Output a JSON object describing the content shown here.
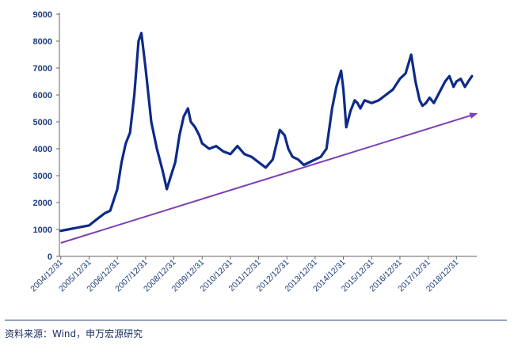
{
  "chart_data": {
    "type": "line",
    "title": "",
    "xlabel": "",
    "ylabel": "",
    "ylim": [
      0,
      9000
    ],
    "y_ticks": [
      0,
      1000,
      2000,
      3000,
      4000,
      5000,
      6000,
      7000,
      8000,
      9000
    ],
    "x_ticks": [
      "2004/12/31",
      "2005/12/31",
      "2006/12/31",
      "2007/12/31",
      "2008/12/31",
      "2009/12/31",
      "2010/12/31",
      "2011/12/31",
      "2012/12/31",
      "2013/12/31",
      "2014/12/31",
      "2015/12/31",
      "2016/12/31",
      "2017/12/31",
      "2018/12/31"
    ],
    "grid": false,
    "legend": "none",
    "series": [
      {
        "color": "#0d2a8a",
        "x": [
          2005.0,
          2005.25,
          2005.5,
          2005.75,
          2006.0,
          2006.3,
          2006.55,
          2006.75,
          2007.0,
          2007.15,
          2007.3,
          2007.45,
          2007.6,
          2007.75,
          2007.85,
          2008.0,
          2008.2,
          2008.4,
          2008.6,
          2008.75,
          2008.9,
          2009.05,
          2009.2,
          2009.35,
          2009.5,
          2009.6,
          2009.75,
          2009.9,
          2010.0,
          2010.25,
          2010.5,
          2010.75,
          2011.0,
          2011.25,
          2011.5,
          2011.75,
          2012.0,
          2012.25,
          2012.5,
          2012.75,
          2012.92,
          2013.05,
          2013.2,
          2013.4,
          2013.6,
          2013.8,
          2014.0,
          2014.2,
          2014.4,
          2014.6,
          2014.75,
          2014.92,
          2015.0,
          2015.1,
          2015.25,
          2015.4,
          2015.5,
          2015.6,
          2015.75,
          2016.0,
          2016.25,
          2016.5,
          2016.75,
          2017.0,
          2017.2,
          2017.4,
          2017.55,
          2017.7,
          2017.8,
          2017.92,
          2018.05,
          2018.2,
          2018.4,
          2018.6,
          2018.75,
          2018.9,
          2019.0,
          2019.15,
          2019.3,
          2019.42,
          2019.55
        ],
        "y": [
          950,
          1000,
          1050,
          1100,
          1150,
          1400,
          1600,
          1700,
          2500,
          3500,
          4200,
          4600,
          6000,
          8000,
          8300,
          7000,
          5000,
          4000,
          3200,
          2500,
          3000,
          3500,
          4500,
          5200,
          5500,
          5000,
          4800,
          4500,
          4200,
          4000,
          4100,
          3900,
          3800,
          4100,
          3800,
          3700,
          3500,
          3300,
          3600,
          4700,
          4500,
          4000,
          3700,
          3600,
          3400,
          3500,
          3600,
          3700,
          4000,
          5500,
          6300,
          6900,
          6200,
          4800,
          5400,
          5800,
          5700,
          5500,
          5800,
          5700,
          5800,
          6000,
          6200,
          6600,
          6800,
          7500,
          6500,
          5800,
          5600,
          5700,
          5900,
          5700,
          6100,
          6500,
          6700,
          6300,
          6500,
          6600,
          6300,
          6500,
          6700
        ]
      }
    ],
    "annotations": [
      {
        "type": "trend-arrow",
        "color": "#7d3fb8",
        "from": [
          2005.0,
          500
        ],
        "to": [
          2019.7,
          5300
        ]
      }
    ]
  },
  "source_note": "资料来源：Wind，申万宏源研究"
}
